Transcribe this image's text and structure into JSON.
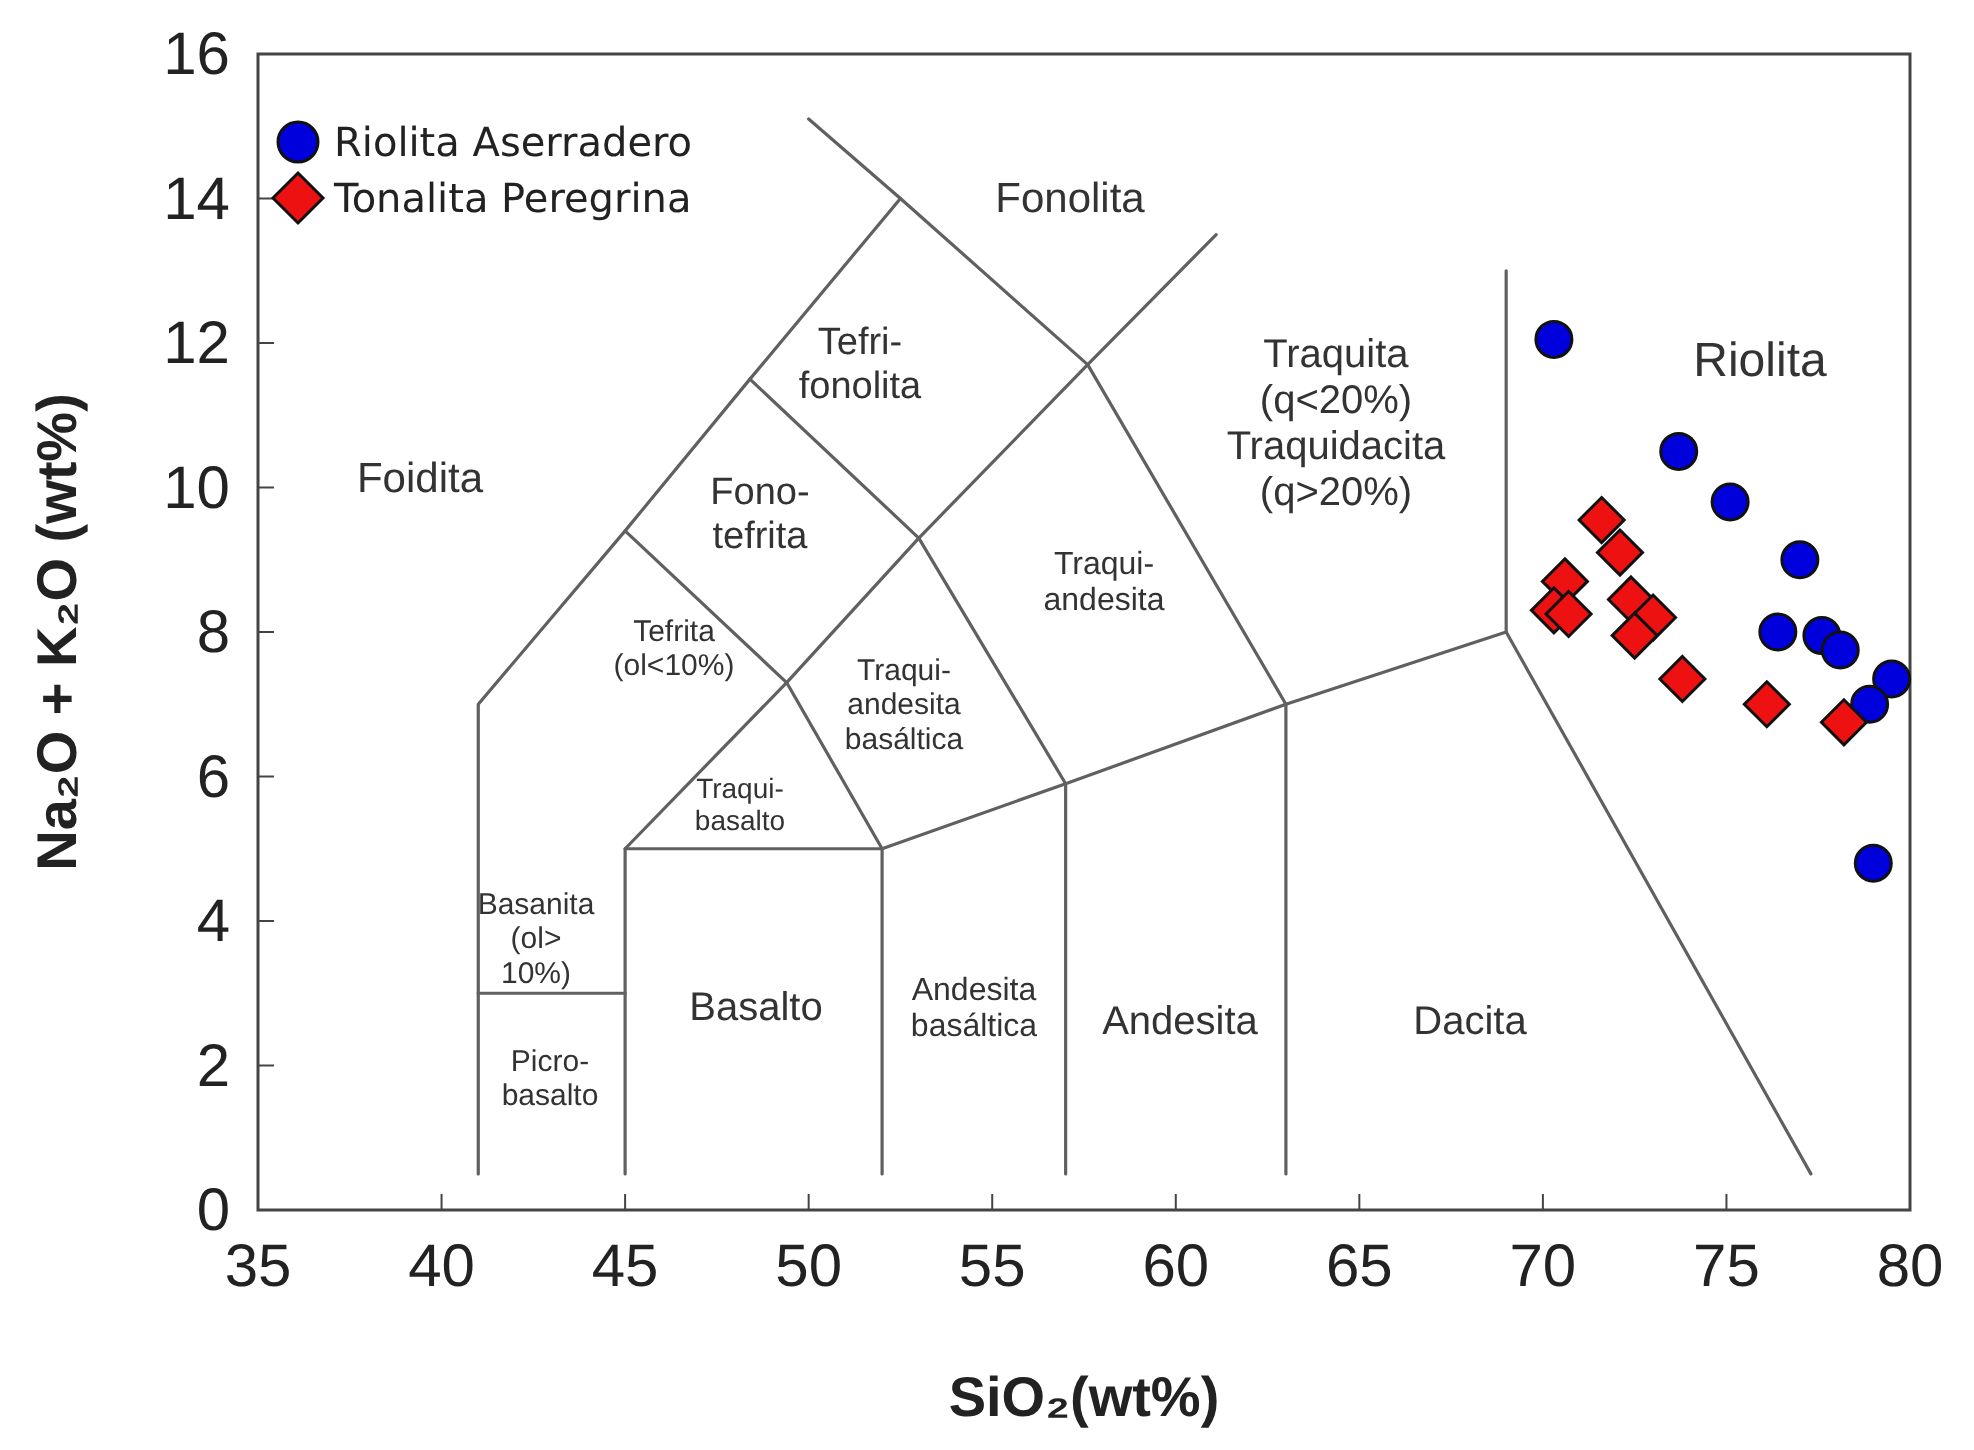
{
  "chart_data": {
    "type": "scatter",
    "xlabel": "SiO₂(wt%)",
    "ylabel": "Na₂O + K₂O (wt%)",
    "xlim": [
      35,
      80
    ],
    "ylim": [
      0,
      16
    ],
    "xticks": [
      35,
      40,
      45,
      50,
      55,
      60,
      65,
      70,
      75,
      80
    ],
    "yticks": [
      0,
      2,
      4,
      6,
      8,
      10,
      12,
      14,
      16
    ],
    "grid": false,
    "legend": "top left",
    "series": [
      {
        "type": "line",
        "color": "#606060",
        "x": [
          41,
          41,
          45,
          48.4,
          52.5,
          50
        ],
        "values": [
          0.5,
          7,
          9.4,
          11.5,
          14,
          15.1
        ]
      },
      {
        "type": "line",
        "color": "#606060",
        "x": [
          52.5,
          57.6,
          61.1
        ],
        "values": [
          14,
          11.7,
          13.5
        ]
      },
      {
        "type": "line",
        "color": "#606060",
        "x": [
          41,
          45
        ],
        "values": [
          3,
          3
        ]
      },
      {
        "type": "line",
        "color": "#606060",
        "x": [
          45,
          45,
          52,
          52
        ],
        "values": [
          0.5,
          5,
          5,
          0.5
        ]
      },
      {
        "type": "line",
        "color": "#606060",
        "x": [
          45,
          49.4,
          53,
          57.6,
          63,
          63
        ],
        "values": [
          5,
          7.3,
          9.3,
          11.7,
          7,
          0.5
        ]
      },
      {
        "type": "line",
        "color": "#606060",
        "x": [
          45,
          49.4,
          52
        ],
        "values": [
          9.4,
          7.3,
          5
        ]
      },
      {
        "type": "line",
        "color": "#606060",
        "x": [
          48.4,
          53,
          57,
          57
        ],
        "values": [
          11.5,
          9.3,
          5.9,
          0.5
        ]
      },
      {
        "type": "line",
        "color": "#606060",
        "x": [
          52,
          57,
          63,
          69,
          69
        ],
        "values": [
          5,
          5.9,
          7,
          8,
          13
        ]
      },
      {
        "type": "line",
        "color": "#606060",
        "x": [
          69,
          77.3
        ],
        "values": [
          8,
          0.5
        ]
      },
      {
        "name": "Riolita Aserradero",
        "color": "#0000dd",
        "marker": "circle",
        "x": [
          70.3,
          73.7,
          75.1,
          77.0,
          76.4,
          77.6,
          78.1,
          79.5,
          78.9,
          79.0
        ],
        "values": [
          12.05,
          10.5,
          9.8,
          9.0,
          8.0,
          7.95,
          7.75,
          7.35,
          7.0,
          4.8
        ]
      },
      {
        "name": "Tonalita Peregrina",
        "color": "#ee1111",
        "marker": "diamond",
        "x": [
          71.6,
          72.1,
          70.6,
          70.3,
          70.7,
          72.4,
          73.0,
          72.5,
          73.8,
          76.1,
          78.2
        ],
        "values": [
          9.55,
          9.1,
          8.7,
          8.3,
          8.25,
          8.45,
          8.2,
          7.95,
          7.35,
          7.0,
          6.75
        ]
      }
    ],
    "annotations": [
      "Foidita",
      "Fonolita",
      "Tefri-\nfonolita",
      "Fono-\ntefrita",
      "Tefrita\n(ol<10%)",
      "Basanita\n(ol>\n10%)",
      "Picro-\nbasalto",
      "Traqui-\nbasalto",
      "Traqui-\nandesita\nbasáltica",
      "Traqui-\nandesita",
      "Traquita\n(q<20%)\nTraquidacita\n(q>20%)",
      "Riolita",
      "Basalto",
      "Andesita\nbasáltica",
      "Andesita",
      "Dacita"
    ]
  }
}
